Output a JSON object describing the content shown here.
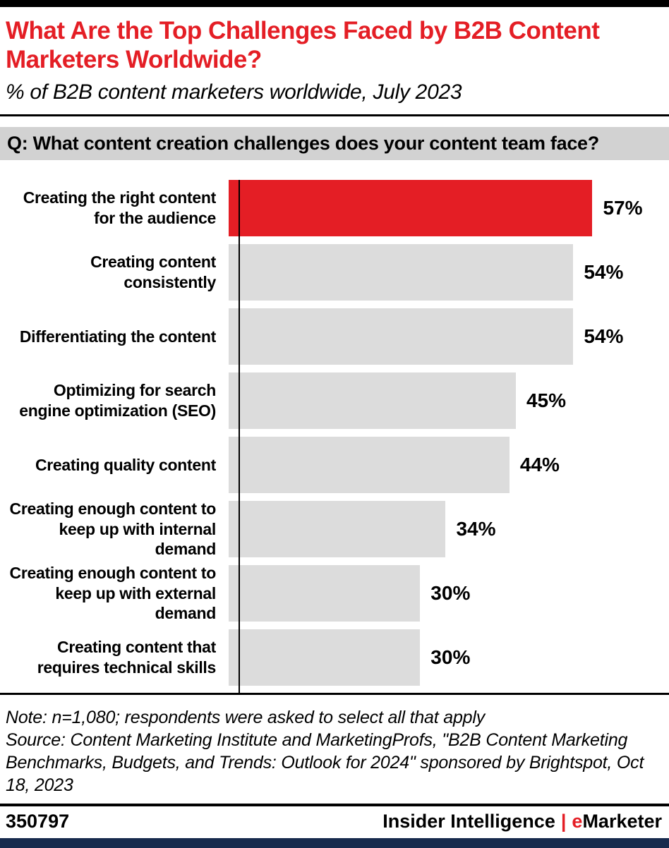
{
  "header": {
    "title": "What Are the Top Challenges Faced by B2B Content Marketers Worldwide?",
    "subtitle": "% of B2B content marketers worldwide, July 2023"
  },
  "question": "Q: What content creation challenges does your content team face?",
  "chart_data": {
    "type": "bar",
    "orientation": "horizontal",
    "title": "What Are the Top Challenges Faced by B2B Content Marketers Worldwide?",
    "subtitle": "% of B2B content marketers worldwide, July 2023",
    "categories": [
      "Creating the right content for the audience",
      "Creating content consistently",
      "Differentiating the content",
      "Optimizing for search engine optimization (SEO)",
      "Creating quality content",
      "Creating enough content to keep up with internal demand",
      "Creating enough content to keep up with external demand",
      "Creating content that requires technical skills"
    ],
    "values": [
      57,
      54,
      54,
      45,
      44,
      34,
      30,
      30
    ],
    "value_labels": [
      "57%",
      "54%",
      "54%",
      "45%",
      "44%",
      "34%",
      "30%",
      "30%"
    ],
    "xlim": [
      0,
      69
    ],
    "grid": false,
    "legend": false,
    "highlight_index": 0,
    "highlight_color": "#e41e25",
    "bar_color": "#dcdcdc"
  },
  "notes": {
    "note": "Note: n=1,080; respondents were asked to select all that apply",
    "source": "Source: Content Marketing Institute and MarketingProfs, \"B2B Content Marketing Benchmarks, Budgets, and Trends: Outlook for 2024\" sponsored by Brightspot, Oct 18, 2023"
  },
  "footer": {
    "chart_id": "350797",
    "brand_left": "Insider Intelligence",
    "brand_separator": "|",
    "brand_e": "e",
    "brand_rest": "Marketer"
  },
  "colors": {
    "accent_red": "#e41e25",
    "bar_gray": "#dcdcdc",
    "banner_gray": "#d2d2d2",
    "footer_navy": "#172a4d",
    "rule_black": "#000000"
  }
}
